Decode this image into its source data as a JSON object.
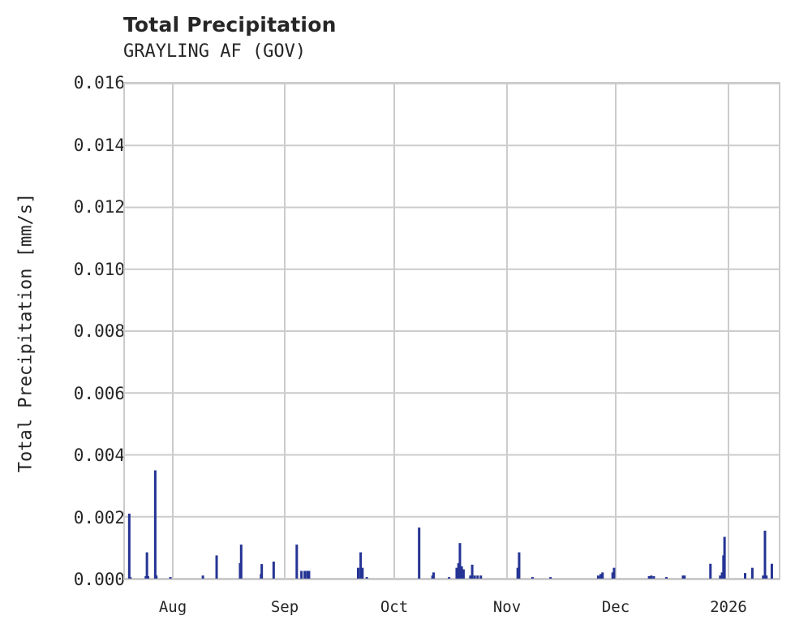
{
  "title": "Total Precipitation",
  "subtitle": "GRAYLING AF (GOV)",
  "colors": {
    "bar": "#253494",
    "grid": "#cccccc",
    "text": "#262626"
  },
  "chart_data": {
    "type": "bar",
    "title": "Total Precipitation",
    "subtitle": "GRAYLING AF (GOV)",
    "xlabel": "",
    "ylabel": "Total Precipitation [mm/s]",
    "ylim": [
      0,
      0.016
    ],
    "yticks": [
      "0.000",
      "0.002",
      "0.004",
      "0.006",
      "0.008",
      "0.010",
      "0.012",
      "0.014",
      "0.016"
    ],
    "xticks": [
      "Aug",
      "Sep",
      "Oct",
      "Nov",
      "Dec",
      "2026"
    ],
    "grid": true,
    "x_start": "Jul 18",
    "x_unit": "days since Jul 18",
    "series": [
      {
        "name": "Total Precipitation",
        "points": [
          [
            1.2,
            0.0021
          ],
          [
            1.5,
            5e-05
          ],
          [
            5.8,
            8e-05
          ],
          [
            6.1,
            0.00085
          ],
          [
            6.4,
            8e-05
          ],
          [
            8.4,
            0.0035
          ],
          [
            8.7,
            0.0001
          ],
          [
            12.6,
            5e-05
          ],
          [
            21.6,
            0.0001
          ],
          [
            25.4,
            0.00075
          ],
          [
            31.9,
            0.0005
          ],
          [
            32.2,
            0.0011
          ],
          [
            37.7,
            0.00015
          ],
          [
            37.9,
            0.00047
          ],
          [
            41.2,
            0.00055
          ],
          [
            47.6,
            0.0011
          ],
          [
            48.9,
            0.00025
          ],
          [
            49.8,
            0.00025
          ],
          [
            50.5,
            0.00025
          ],
          [
            51.0,
            0.00025
          ],
          [
            64.6,
            0.00035
          ],
          [
            65.3,
            0.00085
          ],
          [
            65.8,
            0.00035
          ],
          [
            67.0,
            5e-05
          ],
          [
            81.5,
            0.00165
          ],
          [
            85.2,
            0.0001
          ],
          [
            85.5,
            0.0002
          ],
          [
            89.8,
            5e-05
          ],
          [
            91.9,
            0.00035
          ],
          [
            92.4,
            0.0005
          ],
          [
            92.8,
            0.00115
          ],
          [
            93.3,
            0.0004
          ],
          [
            93.8,
            0.0003
          ],
          [
            95.7,
            0.0001
          ],
          [
            96.2,
            0.00045
          ],
          [
            96.9,
            0.0001
          ],
          [
            97.7,
            0.0001
          ],
          [
            98.6,
            0.0001
          ],
          [
            108.8,
            0.00035
          ],
          [
            109.2,
            0.00085
          ],
          [
            112.9,
            5e-05
          ],
          [
            117.9,
            5e-05
          ],
          [
            131.1,
            0.0001
          ],
          [
            131.8,
            0.00015
          ],
          [
            132.3,
            0.0002
          ],
          [
            135.1,
            0.0002
          ],
          [
            135.5,
            0.00035
          ],
          [
            145.2,
            8e-05
          ],
          [
            145.8,
            0.0001
          ],
          [
            146.5,
            8e-05
          ],
          [
            150.0,
            5e-05
          ],
          [
            154.6,
            0.0001
          ],
          [
            155.0,
            0.0001
          ],
          [
            162.2,
            0.00048
          ],
          [
            164.9,
            0.0001
          ],
          [
            165.4,
            0.0002
          ],
          [
            165.8,
            0.00075
          ],
          [
            166.1,
            0.00135
          ],
          [
            171.8,
            0.00018
          ],
          [
            173.8,
            0.00035
          ],
          [
            176.8,
            0.0001
          ],
          [
            177.3,
            0.00155
          ],
          [
            177.7,
            0.0001
          ],
          [
            179.2,
            0.00048
          ],
          [
            181.5,
            5e-05
          ],
          [
            181.9,
            0.0001
          ]
        ]
      }
    ]
  }
}
